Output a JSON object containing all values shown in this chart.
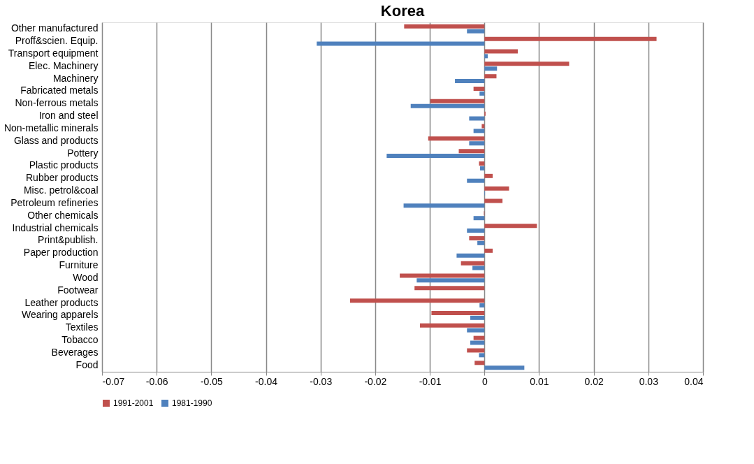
{
  "chart_data": {
    "type": "bar",
    "orientation": "horizontal",
    "title": "Korea",
    "categories": [
      "Other manufactured",
      "Proff&scien. Equip.",
      "Transport equipment",
      "Elec. Machinery",
      "Machinery",
      "Fabricated metals",
      "Non-ferrous metals",
      "Iron and steel",
      "Non-metallic minerals",
      "Glass and products",
      "Pottery",
      "Plastic products",
      "Rubber products",
      "Misc. petrol&coal",
      "Petroleum refineries",
      "Other chemicals",
      "Industrial chemicals",
      "Print&publish.",
      "Paper production",
      "Furniture",
      "Wood",
      "Footwear",
      "Leather products",
      "Wearing apparels",
      "Textiles",
      "Tobacco",
      "Beverages",
      "Food"
    ],
    "series": [
      {
        "name": "1991-2001",
        "color": "#c0504d",
        "values": [
          -0.0147,
          0.0315,
          0.0061,
          0.0155,
          0.0022,
          -0.002,
          -0.0099,
          0.0002,
          -0.0005,
          -0.0103,
          -0.0047,
          -0.001,
          0.0015,
          0.0045,
          0.0033,
          -0.0001,
          0.0096,
          -0.0028,
          0.0015,
          -0.0043,
          -0.0155,
          -0.0128,
          -0.0246,
          -0.0097,
          -0.0118,
          -0.002,
          -0.0032,
          -0.0018
        ]
      },
      {
        "name": "1981-1990",
        "color": "#4f81bd",
        "values": [
          -0.0032,
          -0.0307,
          0.0006,
          0.0023,
          -0.0054,
          -0.0009,
          -0.0135,
          -0.0028,
          -0.002,
          -0.0028,
          -0.0179,
          -0.0008,
          -0.0032,
          0.0001,
          -0.0148,
          -0.002,
          -0.0032,
          -0.0013,
          -0.0051,
          -0.0022,
          -0.0124,
          null,
          -0.0009,
          -0.0026,
          -0.0032,
          -0.0026,
          -0.001,
          0.0073
        ]
      }
    ],
    "xlim": [
      -0.07,
      0.04
    ],
    "xticks": [
      -0.07,
      -0.06,
      -0.05,
      -0.04,
      -0.03,
      -0.02,
      -0.01,
      0,
      0.01,
      0.02,
      0.03,
      0.04
    ],
    "grid": "x",
    "legend": "bottom"
  }
}
